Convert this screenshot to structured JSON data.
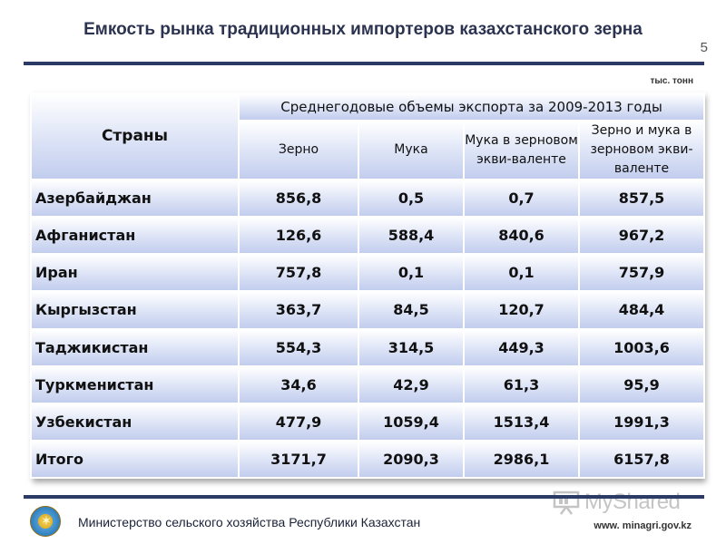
{
  "slide": {
    "title": "Емкость рынка традиционных импортеров казахстанского зерна",
    "page_number": "5",
    "units": "тыс. тонн"
  },
  "table": {
    "header": {
      "countries": "Страны",
      "group": "Среднегодовые объемы экспорта за 2009-2013 годы",
      "columns": [
        "Зерно",
        "Мука",
        "Мука в зерновом экви-валенте",
        "Зерно и мука в зерновом экви-валенте"
      ]
    },
    "rows": [
      {
        "country": "Азербайджан",
        "values": [
          "856,8",
          "0,5",
          "0,7",
          "857,5"
        ]
      },
      {
        "country": "Афганистан",
        "values": [
          "126,6",
          "588,4",
          "840,6",
          "967,2"
        ]
      },
      {
        "country": "Иран",
        "values": [
          "757,8",
          "0,1",
          "0,1",
          "757,9"
        ]
      },
      {
        "country": "Кыргызстан",
        "values": [
          "363,7",
          "84,5",
          "120,7",
          "484,4"
        ]
      },
      {
        "country": "Таджикистан",
        "values": [
          "554,3",
          "314,5",
          "449,3",
          "1003,6"
        ]
      },
      {
        "country": "Туркменистан",
        "values": [
          "34,6",
          "42,9",
          "61,3",
          "95,9"
        ]
      },
      {
        "country": "Узбекистан",
        "values": [
          "477,9",
          "1059,4",
          "1513,4",
          "1991,3"
        ]
      },
      {
        "country": "Итого",
        "values": [
          "3171,7",
          "2090,3",
          "2986,1",
          "6157,8"
        ]
      }
    ]
  },
  "footer": {
    "ministry": "Министерство сельского хозяйства Республики Казахстан",
    "website": "www. minagri.gov.kz",
    "emblem_icon": "kazakhstan-emblem-icon",
    "watermark": "MyShared"
  },
  "colors": {
    "rule": "#2c3a66",
    "cell_top": "#ffffff",
    "cell_bottom": "#c2cdee"
  }
}
